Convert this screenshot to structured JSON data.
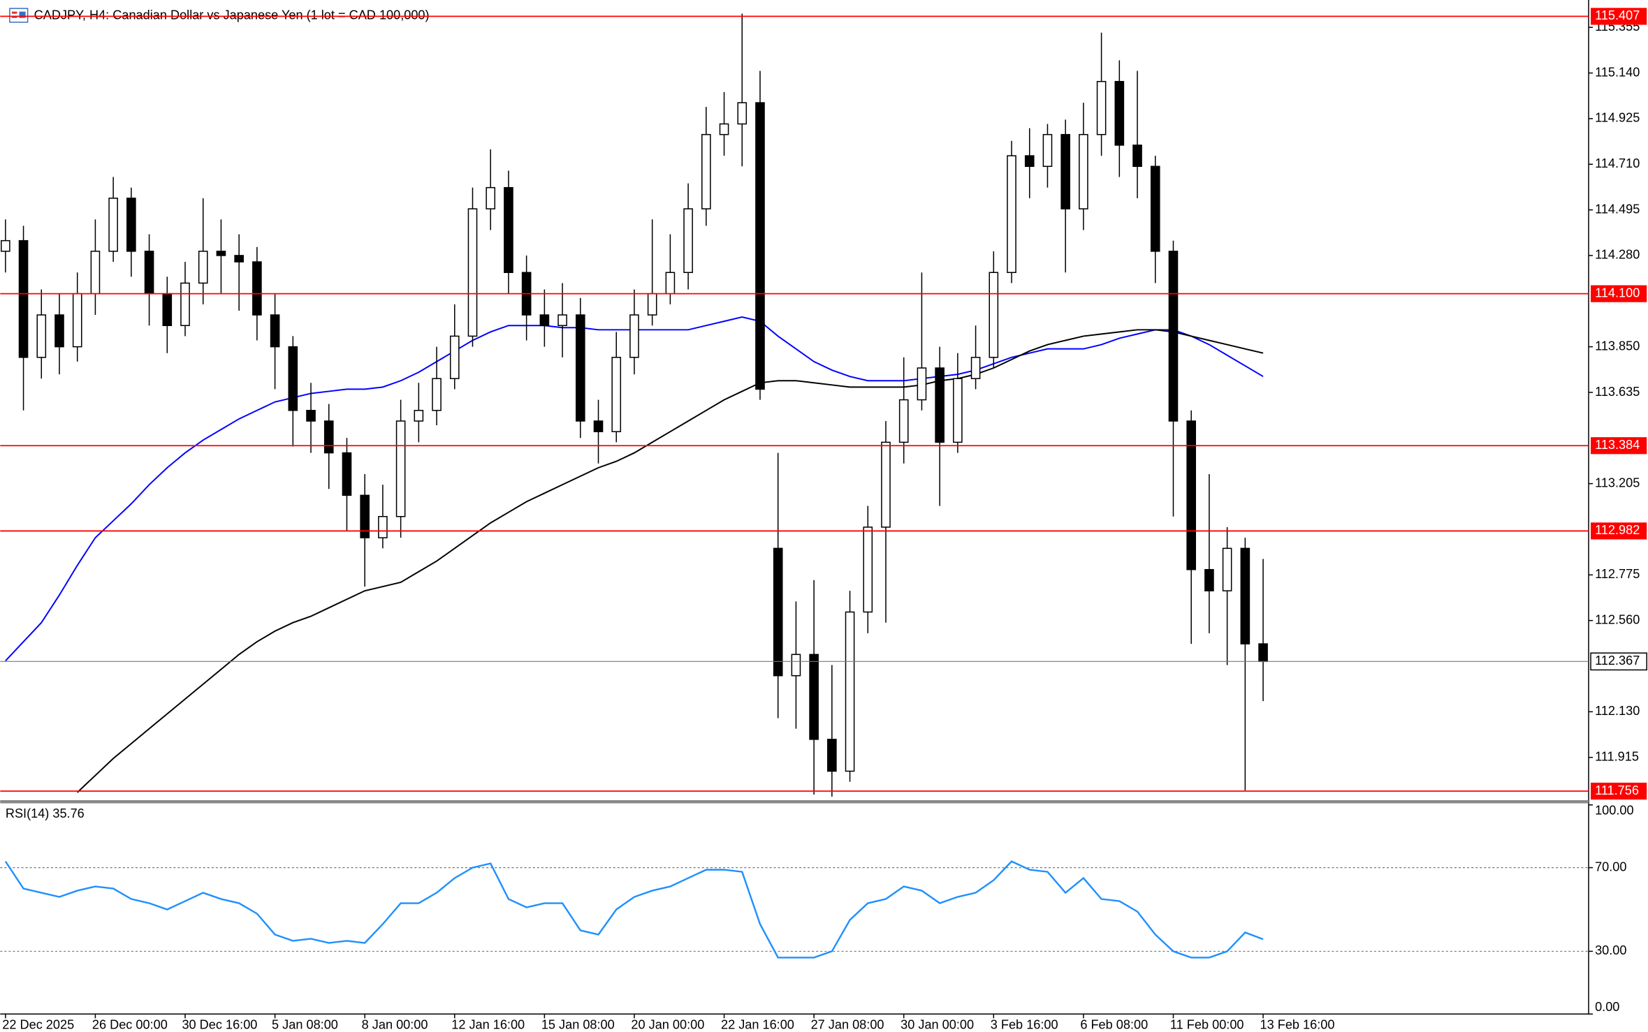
{
  "chart_data": [
    {
      "type": "candlestick",
      "title": "CADJPY, H4:  Canadian Dollar vs Japanese Yen (1 lot = CAD 100,000)",
      "categories": [
        "22 Dec 2025",
        null,
        null,
        null,
        null,
        "26 Dec 00:00",
        null,
        null,
        null,
        null,
        "30 Dec 16:00",
        null,
        null,
        null,
        null,
        "5 Jan 08:00",
        null,
        null,
        null,
        null,
        "8 Jan 00:00",
        null,
        null,
        null,
        null,
        "12 Jan 16:00",
        null,
        null,
        null,
        null,
        "15 Jan 08:00",
        null,
        null,
        null,
        null,
        "20 Jan 00:00",
        null,
        null,
        null,
        null,
        "22 Jan 16:00",
        null,
        null,
        null,
        null,
        "27 Jan 08:00",
        null,
        null,
        null,
        null,
        "30 Jan 00:00",
        null,
        null,
        null,
        null,
        "3 Feb 16:00",
        null,
        null,
        null,
        null,
        "6 Feb 08:00",
        null,
        null,
        null,
        null,
        "11 Feb 00:00",
        null,
        null,
        null,
        null,
        "13 Feb 16:00"
      ],
      "open": [
        114.3,
        114.35,
        113.8,
        114.0,
        113.85,
        114.1,
        114.3,
        114.55,
        114.3,
        114.1,
        113.95,
        114.15,
        114.3,
        114.28,
        114.25,
        114.0,
        113.85,
        113.55,
        113.5,
        113.35,
        113.15,
        112.95,
        113.05,
        113.5,
        113.55,
        113.7,
        113.9,
        114.5,
        114.6,
        114.2,
        114.0,
        113.95,
        114.0,
        113.5,
        113.45,
        113.8,
        114.0,
        114.1,
        114.2,
        114.5,
        114.85,
        114.9,
        115.0,
        112.9,
        112.3,
        112.4,
        112.0,
        111.85,
        112.6,
        113.0,
        113.4,
        113.6,
        113.75,
        113.4,
        113.7,
        113.8,
        114.2,
        114.75,
        114.7,
        114.85,
        114.5,
        114.85,
        115.1,
        114.8,
        114.7,
        114.3,
        113.5,
        112.8,
        112.7,
        112.9,
        112.45
      ],
      "high": [
        114.45,
        114.42,
        114.12,
        114.1,
        114.2,
        114.45,
        114.65,
        114.6,
        114.38,
        114.18,
        114.25,
        114.55,
        114.45,
        114.38,
        114.32,
        114.1,
        113.9,
        113.68,
        113.58,
        113.42,
        113.25,
        113.2,
        113.6,
        113.68,
        113.85,
        114.05,
        114.6,
        114.78,
        114.68,
        114.28,
        114.12,
        114.15,
        114.08,
        113.6,
        113.92,
        114.12,
        114.45,
        114.38,
        114.62,
        114.98,
        115.05,
        115.42,
        115.15,
        113.35,
        112.65,
        112.75,
        112.35,
        112.7,
        113.1,
        113.5,
        113.8,
        114.2,
        113.85,
        113.82,
        113.95,
        114.3,
        114.82,
        114.88,
        114.9,
        114.92,
        115.0,
        115.33,
        115.2,
        115.15,
        114.75,
        114.35,
        113.55,
        113.25,
        113.0,
        112.95,
        112.85
      ],
      "low": [
        114.2,
        113.55,
        113.7,
        113.72,
        113.78,
        114.0,
        114.25,
        114.18,
        113.95,
        113.82,
        113.9,
        114.05,
        114.1,
        114.02,
        113.88,
        113.65,
        113.38,
        113.35,
        113.18,
        112.98,
        112.72,
        112.9,
        112.95,
        113.4,
        113.48,
        113.65,
        113.85,
        114.4,
        114.1,
        113.88,
        113.85,
        113.8,
        113.42,
        113.3,
        113.4,
        113.72,
        113.95,
        114.05,
        114.12,
        114.42,
        114.75,
        114.7,
        113.6,
        112.1,
        112.05,
        111.74,
        111.73,
        111.8,
        112.5,
        112.55,
        113.3,
        113.55,
        113.1,
        113.35,
        113.65,
        113.75,
        114.15,
        114.55,
        114.6,
        114.2,
        114.4,
        114.75,
        114.65,
        114.55,
        114.15,
        113.05,
        112.45,
        112.5,
        112.35,
        111.76,
        112.18
      ],
      "close": [
        114.35,
        113.8,
        114.0,
        113.85,
        114.1,
        114.3,
        114.55,
        114.3,
        114.1,
        113.95,
        114.15,
        114.3,
        114.28,
        114.25,
        114.0,
        113.85,
        113.55,
        113.5,
        113.35,
        113.15,
        112.95,
        113.05,
        113.5,
        113.55,
        113.7,
        113.9,
        114.5,
        114.6,
        114.2,
        114.0,
        113.95,
        114.0,
        113.5,
        113.45,
        113.8,
        114.0,
        114.1,
        114.2,
        114.5,
        114.85,
        114.9,
        115.0,
        113.65,
        112.3,
        112.4,
        112.0,
        111.85,
        112.6,
        113.0,
        113.4,
        113.6,
        113.75,
        113.4,
        113.7,
        113.8,
        114.2,
        114.75,
        114.7,
        114.85,
        114.5,
        114.85,
        115.1,
        114.8,
        114.7,
        114.3,
        113.5,
        112.8,
        112.7,
        112.9,
        112.45,
        112.367
      ],
      "up_color": "#ffffff",
      "down_color": "#000000",
      "ma_lines": [
        {
          "color": "#0000ff",
          "values": [
            112.37,
            112.46,
            112.55,
            112.68,
            112.82,
            112.95,
            113.03,
            113.11,
            113.2,
            113.28,
            113.35,
            113.41,
            113.46,
            113.51,
            113.55,
            113.59,
            113.61,
            113.63,
            113.64,
            113.65,
            113.65,
            113.66,
            113.69,
            113.73,
            113.78,
            113.83,
            113.88,
            113.92,
            113.95,
            113.95,
            113.95,
            113.94,
            113.94,
            113.93,
            113.93,
            113.93,
            113.93,
            113.93,
            113.93,
            113.95,
            113.97,
            113.99,
            113.97,
            113.9,
            113.84,
            113.78,
            113.74,
            113.71,
            113.69,
            113.69,
            113.69,
            113.7,
            113.71,
            113.72,
            113.74,
            113.77,
            113.8,
            113.82,
            113.84,
            113.84,
            113.84,
            113.86,
            113.89,
            113.91,
            113.93,
            113.93,
            113.9,
            113.86,
            113.81,
            113.76,
            113.71
          ]
        },
        {
          "color": "#000000",
          "values": [
            null,
            null,
            null,
            null,
            111.75,
            111.83,
            111.91,
            111.98,
            112.05,
            112.12,
            112.19,
            112.26,
            112.33,
            112.4,
            112.46,
            112.51,
            112.55,
            112.58,
            112.62,
            112.66,
            112.7,
            112.72,
            112.74,
            112.79,
            112.84,
            112.9,
            112.96,
            113.02,
            113.07,
            113.12,
            113.16,
            113.2,
            113.24,
            113.28,
            113.31,
            113.35,
            113.4,
            113.45,
            113.5,
            113.55,
            113.6,
            113.64,
            113.68,
            113.69,
            113.69,
            113.68,
            113.67,
            113.66,
            113.66,
            113.66,
            113.66,
            113.67,
            113.69,
            113.7,
            113.72,
            113.75,
            113.79,
            113.83,
            113.86,
            113.88,
            113.9,
            113.91,
            113.92,
            113.93,
            113.93,
            113.92,
            113.9,
            113.88,
            113.86,
            113.84,
            113.82
          ]
        }
      ],
      "ylim": [
        111.716,
        115.484
      ],
      "yticks": [
        {
          "value": 115.355,
          "label": "115.355"
        },
        {
          "value": 115.14,
          "label": "115.140"
        },
        {
          "value": 114.925,
          "label": "114.925"
        },
        {
          "value": 114.71,
          "label": "114.710"
        },
        {
          "value": 114.495,
          "label": "114.495"
        },
        {
          "value": 114.28,
          "label": "114.280"
        },
        {
          "value": 113.85,
          "label": "113.850"
        },
        {
          "value": 113.635,
          "label": "113.635"
        },
        {
          "value": 113.205,
          "label": "113.205"
        },
        {
          "value": 112.775,
          "label": "112.775"
        },
        {
          "value": 112.56,
          "label": "112.560"
        },
        {
          "value": 112.13,
          "label": "112.130"
        },
        {
          "value": 111.915,
          "label": "111.915"
        }
      ],
      "levels": [
        {
          "value": 115.407,
          "label": "115.407"
        },
        {
          "value": 114.1,
          "label": "114.100"
        },
        {
          "value": 113.384,
          "label": "113.384"
        },
        {
          "value": 112.982,
          "label": "112.982"
        },
        {
          "value": 111.756,
          "label": "111.756"
        }
      ],
      "level_color": "#ff0000",
      "last_price": {
        "value": 112.367,
        "label": "112.367"
      }
    },
    {
      "type": "line",
      "title": "RSI(14) 35.76",
      "color": "#1e90ff",
      "values": [
        73,
        60,
        58,
        56,
        59,
        61,
        60,
        55,
        53,
        50,
        54,
        58,
        55,
        53,
        48,
        38,
        35,
        36,
        34,
        35,
        34,
        43,
        53,
        53,
        58,
        65,
        70,
        72,
        55,
        51,
        53,
        53,
        40,
        38,
        50,
        56,
        59,
        61,
        65,
        69,
        69,
        68,
        43,
        27,
        27,
        27,
        30,
        45,
        53,
        55,
        61,
        59,
        53,
        56,
        58,
        64,
        73,
        69,
        68,
        58,
        65,
        55,
        54,
        49,
        38,
        30,
        27,
        27,
        30,
        39,
        35.76
      ],
      "ylim": [
        0,
        100
      ],
      "yticks": [
        {
          "value": 100,
          "label": "100.00"
        },
        {
          "value": 70,
          "label": "70.00"
        },
        {
          "value": 30,
          "label": "30.00"
        },
        {
          "value": 0,
          "label": "0.00"
        }
      ]
    }
  ]
}
